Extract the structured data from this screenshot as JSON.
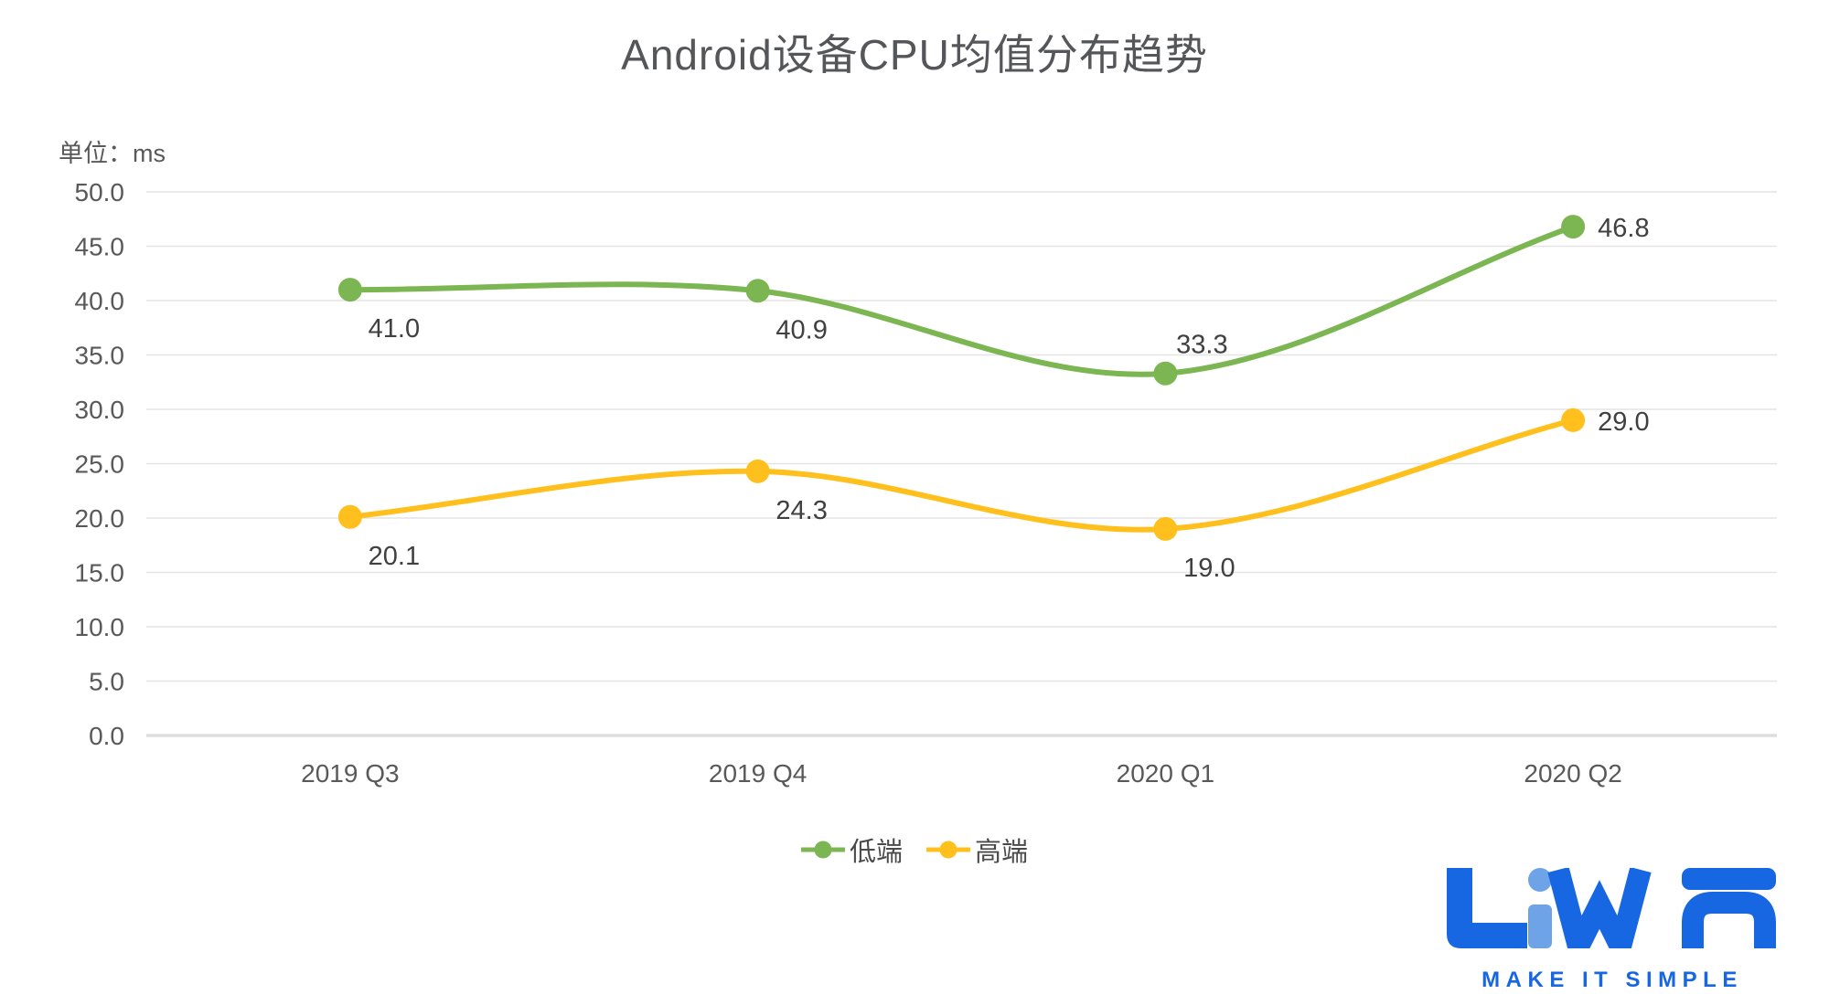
{
  "page": {
    "background": "#FFFFFF"
  },
  "title": {
    "text": "Android设备CPU均值分布趋势",
    "color": "#55565A"
  },
  "unit_label": {
    "text": "单位：ms",
    "color": "#595959"
  },
  "chart_data": {
    "type": "line",
    "smooth": true,
    "grid": true,
    "legend_position": "bottom",
    "title": "Android设备CPU均值分布趋势",
    "ylabel": "单位：ms",
    "categories": [
      "2019 Q3",
      "2019 Q4",
      "2020 Q1",
      "2020 Q2"
    ],
    "series": [
      {
        "name": "低端",
        "color": "#7BB652",
        "values": [
          41.0,
          40.9,
          33.3,
          46.8
        ],
        "labels": [
          "41.0",
          "40.9",
          "33.3",
          "46.8"
        ],
        "label_pos": [
          "below",
          "below",
          "above",
          "right"
        ]
      },
      {
        "name": "高端",
        "color": "#FFC01E",
        "values": [
          20.1,
          24.3,
          19.0,
          29.0
        ],
        "labels": [
          "20.1",
          "24.3",
          "19.0",
          "29.0"
        ],
        "label_pos": [
          "below",
          "below",
          "below",
          "right"
        ]
      }
    ],
    "ylim": [
      0,
      50
    ],
    "ytick_values": [
      0,
      5,
      10,
      15,
      20,
      25,
      30,
      35,
      40,
      45,
      50
    ],
    "ytick_labels": [
      "0.0",
      "5.0",
      "10.0",
      "15.0",
      "20.0",
      "25.0",
      "30.0",
      "35.0",
      "40.0",
      "45.0",
      "50.0"
    ],
    "colors": {
      "grid": "#E4E4E4",
      "axis_line": "#DDDDDD",
      "tick_text": "#595959",
      "value_text": "#404040"
    }
  },
  "legend": {
    "text_color": "#4A4A4A"
  },
  "logo": {
    "brand": "LiWA",
    "tagline": "MAKE IT SIMPLE",
    "primary_color": "#1766E2",
    "accent_color": "#6FA3E8"
  }
}
